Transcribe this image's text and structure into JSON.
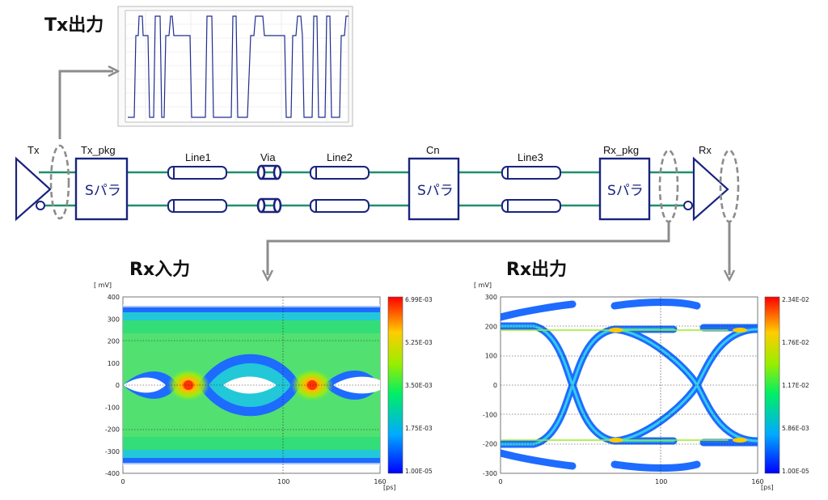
{
  "titles": {
    "tx_out": "Tx出力",
    "rx_in": "Rx入力",
    "rx_out": "Rx出力"
  },
  "components": {
    "tx": "Tx",
    "tx_pkg": "Tx_pkg",
    "line1": "Line1",
    "via": "Via",
    "line2": "Line2",
    "cn": "Cn",
    "line3": "Line3",
    "rx_pkg": "Rx_pkg",
    "rx": "Rx",
    "spara": "Sパラ"
  },
  "colors": {
    "trace": "#1f8f6e",
    "block": "#1a237e",
    "arrow": "#8c8c8c",
    "waveform": "#1f2c8f"
  },
  "chart_data": [
    {
      "type": "heatmap",
      "name": "rx_in_eye",
      "title": "Rx入力",
      "ylabel": "[ mV]",
      "xlabel_unit": "[ps]",
      "xlim": [
        0,
        160
      ],
      "ylim": [
        -400,
        400
      ],
      "xticks": [
        "0",
        "100",
        "160"
      ],
      "yticks": [
        "400",
        "300",
        "200",
        "100",
        "0",
        "-100",
        "-200",
        "-300",
        "-400"
      ],
      "colorbar": [
        "6.99E-03",
        "5.25E-03",
        "3.50E-03",
        "1.75E-03",
        "1.00E-05"
      ]
    },
    {
      "type": "heatmap",
      "name": "rx_out_eye",
      "title": "Rx出力",
      "ylabel": "[ mV]",
      "xlabel_unit": "[ps]",
      "xlim": [
        0,
        160
      ],
      "ylim": [
        -300,
        300
      ],
      "xticks": [
        "0",
        "100",
        "160"
      ],
      "yticks": [
        "300",
        "200",
        "100",
        "0",
        "-100",
        "-200",
        "-300"
      ],
      "colorbar": [
        "2.34E-02",
        "1.76E-02",
        "1.17E-02",
        "5.86E-03",
        "1.00E-05"
      ]
    }
  ]
}
